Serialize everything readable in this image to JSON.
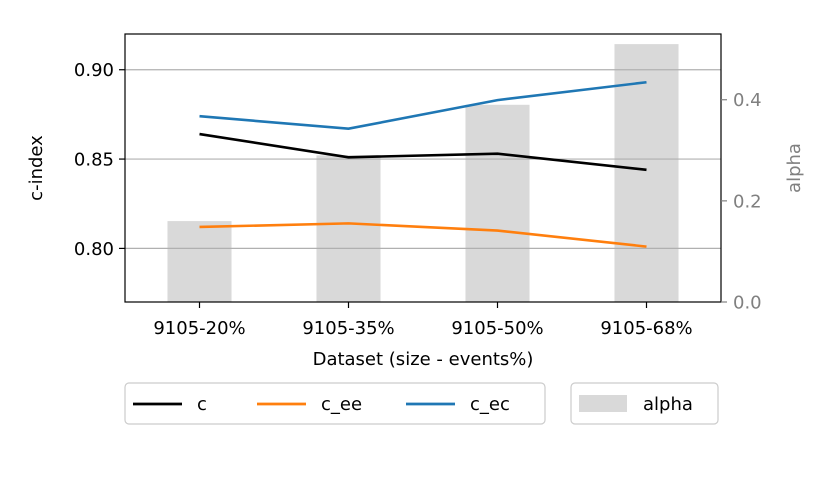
{
  "chart_data": {
    "type": "line",
    "categories": [
      "9105-20%",
      "9105-35%",
      "9105-50%",
      "9105-68%"
    ],
    "xlabel": "Dataset (size - events%)",
    "ylabel": "c-index",
    "ylabel_right": "alpha",
    "ylim": [
      0.77,
      0.92
    ],
    "ylim_right": [
      0.0,
      0.53
    ],
    "yticks": [
      "0.80",
      "0.85",
      "0.90"
    ],
    "yticks_right": [
      "0.0",
      "0.2",
      "0.4"
    ],
    "yticks_values": [
      0.8,
      0.85,
      0.9
    ],
    "yticks_right_values": [
      0.0,
      0.2,
      0.4
    ],
    "grid": "horizontal",
    "legend_position": "bottom",
    "series": [
      {
        "name": "c",
        "type": "line",
        "axis": "left",
        "color": "#000000",
        "values": [
          0.864,
          0.851,
          0.853,
          0.844
        ]
      },
      {
        "name": "c_ee",
        "type": "line",
        "axis": "left",
        "color": "#ff7f0e",
        "values": [
          0.812,
          0.814,
          0.81,
          0.801
        ]
      },
      {
        "name": "c_ec",
        "type": "line",
        "axis": "left",
        "color": "#1f77b4",
        "values": [
          0.874,
          0.867,
          0.883,
          0.893
        ]
      },
      {
        "name": "alpha",
        "type": "bar",
        "axis": "right",
        "color": "#d9d9d9",
        "values": [
          0.16,
          0.29,
          0.39,
          0.51
        ]
      }
    ]
  }
}
